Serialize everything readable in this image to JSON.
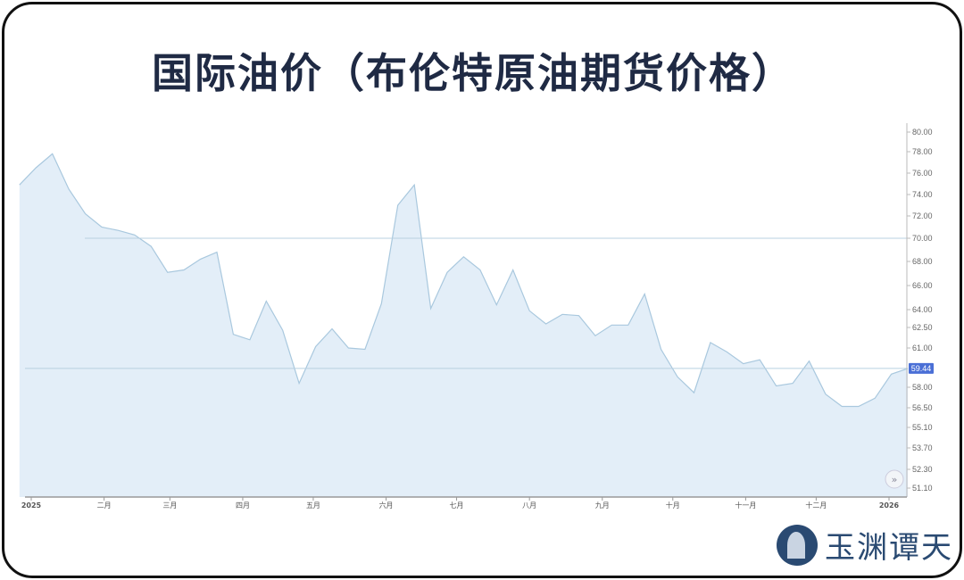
{
  "title": "国际油价（布伦特原油期货价格）",
  "watermark": "玉渊谭天",
  "chart_data": {
    "type": "area",
    "title": "国际油价（布伦特原油期货价格）",
    "xlabel": "",
    "ylabel": "",
    "x_tick_labels": [
      "2025",
      "二月",
      "三月",
      "四月",
      "五月",
      "六月",
      "七月",
      "八月",
      "九月",
      "十月",
      "十一月",
      "十二月",
      "2026"
    ],
    "x_tick_dates": [
      "2025-01-01",
      "2025-02-01",
      "2025-03-01",
      "2025-04-01",
      "2025-05-01",
      "2025-06-01",
      "2025-07-01",
      "2025-08-01",
      "2025-09-01",
      "2025-10-01",
      "2025-11-01",
      "2025-12-01",
      "2026-01-01"
    ],
    "y_tick_labels": [
      "80.00",
      "78.00",
      "76.00",
      "74.00",
      "72.00",
      "70.00",
      "68.00",
      "66.00",
      "64.00",
      "62.50",
      "61.00",
      "58.00",
      "56.50",
      "55.10",
      "53.70",
      "52.30",
      "51.10"
    ],
    "y_axis_position": "right",
    "grid": false,
    "reference_lines": [
      70.0,
      59.44
    ],
    "last_value_label": "59.44",
    "colors": {
      "line": "#a9c8de",
      "fill": "#e3eef8",
      "last_label_bg": "#4a6fd6",
      "title": "#1f2a44"
    },
    "x": [
      "2024-12-27",
      "2025-01-03",
      "2025-01-10",
      "2025-01-17",
      "2025-01-24",
      "2025-01-31",
      "2025-02-07",
      "2025-02-14",
      "2025-02-21",
      "2025-02-28",
      "2025-03-07",
      "2025-03-14",
      "2025-03-21",
      "2025-03-28",
      "2025-04-04",
      "2025-04-11",
      "2025-04-18",
      "2025-04-25",
      "2025-05-02",
      "2025-05-09",
      "2025-05-16",
      "2025-05-23",
      "2025-05-30",
      "2025-06-06",
      "2025-06-13",
      "2025-06-20",
      "2025-06-27",
      "2025-07-04",
      "2025-07-11",
      "2025-07-18",
      "2025-07-25",
      "2025-08-01",
      "2025-08-08",
      "2025-08-15",
      "2025-08-22",
      "2025-08-29",
      "2025-09-05",
      "2025-09-12",
      "2025-09-19",
      "2025-09-26",
      "2025-10-03",
      "2025-10-10",
      "2025-10-17",
      "2025-10-24",
      "2025-10-31",
      "2025-11-07",
      "2025-11-14",
      "2025-11-21",
      "2025-11-28",
      "2025-12-05",
      "2025-12-12",
      "2025-12-19",
      "2025-12-26",
      "2026-01-02",
      "2026-01-09"
    ],
    "values": [
      74.9,
      76.5,
      77.8,
      74.5,
      72.2,
      71.0,
      70.7,
      70.3,
      69.3,
      67.1,
      67.3,
      68.2,
      68.8,
      62.0,
      61.6,
      64.7,
      62.3,
      58.3,
      61.1,
      62.4,
      61.0,
      60.9,
      64.5,
      73.0,
      74.9,
      64.1,
      67.1,
      68.4,
      67.3,
      64.4,
      67.3,
      63.9,
      62.8,
      63.6,
      63.5,
      61.9,
      62.7,
      62.7,
      65.3,
      60.9,
      58.8,
      57.6,
      61.4,
      60.7,
      59.8,
      60.1,
      58.1,
      58.3,
      60.0,
      57.5,
      56.6,
      56.6,
      57.2,
      59.0,
      59.44
    ]
  }
}
